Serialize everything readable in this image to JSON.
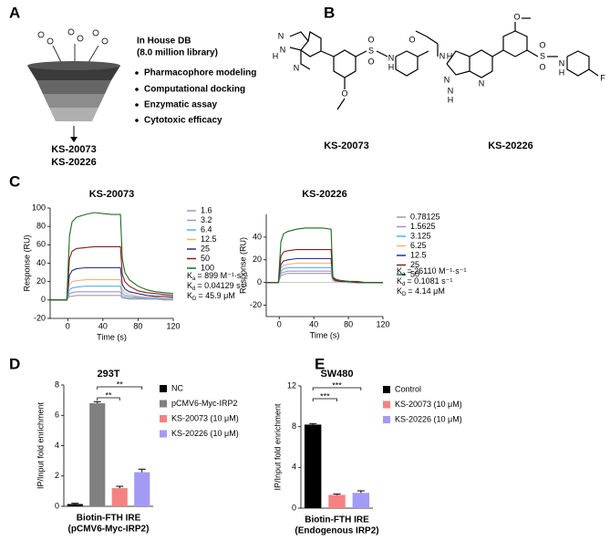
{
  "panel_labels": [
    "A",
    "B",
    "C",
    "D",
    "E"
  ],
  "screening": {
    "db": "In House DB",
    "library": "(8.0 million library)",
    "steps": [
      "Pharmacophore modeling",
      "Computational docking",
      "Enzymatic assay",
      "Cytotoxic efficacy"
    ],
    "hits": [
      "KS-20073",
      "KS-20226"
    ]
  },
  "compounds": [
    {
      "name": "KS-20073",
      "atoms": [
        "N",
        "H",
        "N",
        "N",
        "O",
        "S",
        "O",
        "O",
        "N",
        "H"
      ]
    },
    {
      "name": "KS-20226",
      "atoms": [
        "O",
        "N",
        "H",
        "N",
        "N",
        "H",
        "N",
        "O",
        "S",
        "O",
        "O",
        "N",
        "H",
        "F"
      ]
    }
  ],
  "chart_data": [
    {
      "type": "line",
      "title": "KS-20073",
      "x_label": "Time (s)",
      "y_label": "Response (RU)",
      "xlim": [
        -20,
        120
      ],
      "xticks": [
        0,
        40,
        80,
        120
      ],
      "ylim": [
        -20,
        100
      ],
      "yticks": [
        -20,
        0,
        20,
        40,
        60,
        80,
        100
      ],
      "x": [
        -20,
        -1,
        2,
        5,
        10,
        20,
        30,
        40,
        50,
        60,
        62,
        65,
        70,
        80,
        90,
        100,
        110,
        120
      ],
      "series": [
        {
          "name": "1.6",
          "color": "#9e9e9e",
          "values": [
            0,
            0,
            4,
            4,
            5,
            5,
            5,
            5,
            5,
            5,
            2,
            2,
            1,
            1,
            1,
            1,
            0,
            0
          ]
        },
        {
          "name": "3.2",
          "color": "#a58fd6",
          "values": [
            0,
            0,
            7,
            8,
            9,
            9,
            9,
            9,
            9,
            9,
            4,
            3,
            2,
            2,
            1,
            1,
            1,
            1
          ]
        },
        {
          "name": "6.4",
          "color": "#4fb3e8",
          "values": [
            0,
            0,
            11,
            13,
            14,
            15,
            15,
            15,
            15,
            15,
            7,
            5,
            4,
            3,
            2,
            2,
            2,
            1
          ]
        },
        {
          "name": "12.5",
          "color": "#f4b27a",
          "values": [
            0,
            0,
            17,
            20,
            21,
            22,
            22,
            22,
            22,
            22,
            11,
            8,
            6,
            4,
            3,
            3,
            2,
            2
          ]
        },
        {
          "name": "25",
          "color": "#23308f",
          "values": [
            0,
            0,
            27,
            32,
            34,
            35,
            35,
            35,
            35,
            35,
            17,
            12,
            9,
            7,
            5,
            4,
            4,
            3
          ]
        },
        {
          "name": "50",
          "color": "#8e1b1b",
          "values": [
            0,
            0,
            45,
            53,
            56,
            57,
            58,
            58,
            58,
            58,
            28,
            20,
            15,
            10,
            8,
            7,
            6,
            5
          ]
        },
        {
          "name": "100",
          "color": "#1d6b22",
          "values": [
            0,
            0,
            70,
            85,
            90,
            93,
            95,
            94,
            93,
            93,
            45,
            30,
            22,
            15,
            11,
            9,
            8,
            7
          ]
        }
      ],
      "annotations": [
        {
          "symbol": "K",
          "sub": "a",
          "text": "= 899 M⁻¹·s⁻¹"
        },
        {
          "symbol": "K",
          "sub": "d",
          "text": "= 0.04129 s⁻¹"
        },
        {
          "symbol": "K",
          "sub": "D",
          "text": "= 45.9 μM"
        }
      ]
    },
    {
      "type": "line",
      "title": "KS-20226",
      "x_label": "Time (s)",
      "y_label": "Response (RU)",
      "xlim": [
        -15,
        120
      ],
      "xticks": [
        0,
        40,
        80,
        120
      ],
      "ylim": [
        -30,
        60
      ],
      "yticks": [
        -20,
        0,
        20,
        40
      ],
      "zero_line": true,
      "x": [
        -15,
        -1,
        2,
        5,
        10,
        20,
        30,
        40,
        50,
        60,
        62,
        65,
        70,
        80,
        90,
        100,
        110,
        120
      ],
      "series": [
        {
          "name": "0.78125",
          "color": "#9e9e9e",
          "values": [
            0,
            0,
            6,
            7,
            8,
            8,
            8,
            8,
            8,
            8,
            2,
            1,
            1,
            0,
            0,
            0,
            0,
            0
          ]
        },
        {
          "name": "1.5625",
          "color": "#a58fd6",
          "values": [
            0,
            0,
            8,
            9,
            10,
            10,
            10,
            10,
            10,
            10,
            2,
            1,
            1,
            0,
            0,
            0,
            0,
            0
          ]
        },
        {
          "name": "3.125",
          "color": "#4fb3e8",
          "values": [
            0,
            0,
            10,
            12,
            13,
            13,
            13,
            13,
            13,
            13,
            3,
            2,
            1,
            1,
            0,
            0,
            0,
            0
          ]
        },
        {
          "name": "6.25",
          "color": "#f4b27a",
          "values": [
            0,
            0,
            13,
            15,
            16,
            17,
            17,
            17,
            17,
            17,
            3,
            2,
            1,
            1,
            0,
            0,
            0,
            0
          ]
        },
        {
          "name": "12.5",
          "color": "#23308f",
          "values": [
            0,
            0,
            16,
            19,
            20,
            21,
            21,
            21,
            21,
            21,
            4,
            2,
            1,
            1,
            0,
            0,
            0,
            0
          ]
        },
        {
          "name": "25",
          "color": "#8e1b1b",
          "values": [
            0,
            0,
            23,
            27,
            28,
            29,
            29,
            29,
            29,
            29,
            4,
            2,
            1,
            1,
            0,
            0,
            0,
            0
          ]
        },
        {
          "name": "50",
          "color": "#1d6b22",
          "values": [
            0,
            0,
            36,
            43,
            45,
            47,
            48,
            48,
            48,
            47,
            5,
            3,
            2,
            1,
            1,
            0,
            0,
            0
          ]
        }
      ],
      "annotations": [
        {
          "symbol": "K",
          "sub": "a",
          "text": "= 26110 M⁻¹·s⁻¹"
        },
        {
          "symbol": "K",
          "sub": "d",
          "text": "= 0.1081 s⁻¹"
        },
        {
          "symbol": "K",
          "sub": "D",
          "text": "= 4.14 μM"
        }
      ]
    },
    {
      "type": "bar",
      "title": "293T",
      "y_label": "IP/Input fold enrichment",
      "x_label": [
        "Biotin-FTH IRE",
        "(pCMV6-Myc-IRP2)"
      ],
      "ylim": [
        0,
        8
      ],
      "yticks": [
        0,
        2,
        4,
        6,
        8
      ],
      "series": [
        {
          "name": "NC",
          "color": "#000000",
          "values": [
            0.15
          ],
          "errors": [
            0.05
          ]
        },
        {
          "name": "pCMV6-Myc-IRP2",
          "color": "#808080",
          "values": [
            6.8
          ],
          "errors": [
            0.1
          ]
        },
        {
          "name": "KS-20073 (10 μM)",
          "color": "#f58282",
          "values": [
            1.2
          ],
          "errors": [
            0.12
          ]
        },
        {
          "name": "KS-20226 (10 μM)",
          "color": "#a39af5",
          "values": [
            2.25
          ],
          "errors": [
            0.2
          ]
        }
      ],
      "significance": [
        {
          "bars": [
            1,
            2
          ],
          "label": "**"
        },
        {
          "bars": [
            1,
            3
          ],
          "label": "**"
        }
      ]
    },
    {
      "type": "bar",
      "title": "SW480",
      "y_label": "IP/Input fold enrichment",
      "x_label": [
        "Biotin-FTH IRE",
        "(Endogenous IRP2)"
      ],
      "ylim": [
        0,
        12
      ],
      "yticks": [
        0,
        4,
        8,
        12
      ],
      "series": [
        {
          "name": "Control",
          "color": "#000000",
          "values": [
            8.2
          ],
          "errors": [
            0.1
          ]
        },
        {
          "name": "KS-20073 (10 μM)",
          "color": "#f58282",
          "values": [
            1.3
          ],
          "errors": [
            0.08
          ]
        },
        {
          "name": "KS-20226 (10 μM)",
          "color": "#a39af5",
          "values": [
            1.5
          ],
          "errors": [
            0.2
          ]
        }
      ],
      "significance": [
        {
          "bars": [
            0,
            1
          ],
          "label": "***"
        },
        {
          "bars": [
            0,
            2
          ],
          "label": "***"
        }
      ]
    }
  ]
}
